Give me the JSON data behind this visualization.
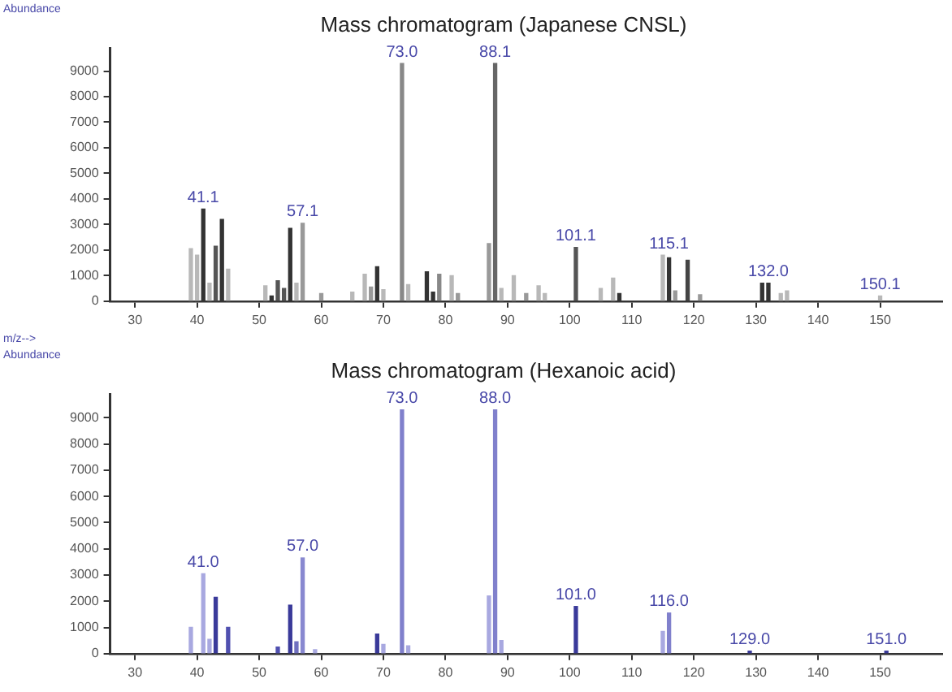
{
  "chart_data": [
    {
      "type": "bar",
      "title": "Mass chromatogram (Japanese CNSL)",
      "xlabel": "m/z-->",
      "ylabel": "Abundance",
      "x": [
        39,
        40,
        41,
        42,
        43,
        44,
        45,
        51,
        52,
        53,
        54,
        55,
        56,
        57,
        60,
        65,
        67,
        68,
        69,
        70,
        73,
        74,
        77,
        78,
        79,
        81,
        82,
        87,
        88,
        89,
        91,
        93,
        95,
        96,
        101,
        105,
        107,
        108,
        115,
        116,
        117,
        119,
        121,
        131,
        132,
        134,
        135,
        150
      ],
      "values": [
        2050,
        1800,
        3600,
        700,
        2150,
        3200,
        1250,
        600,
        200,
        800,
        500,
        2850,
        700,
        3050,
        300,
        350,
        1050,
        550,
        1350,
        450,
        9300,
        650,
        1150,
        350,
        1050,
        1000,
        300,
        2250,
        9300,
        500,
        1000,
        300,
        600,
        300,
        2100,
        500,
        900,
        300,
        1800,
        1700,
        400,
        1600,
        250,
        700,
        700,
        300,
        400,
        200
      ],
      "colors": [
        "#b8b8b8",
        "#b8b8b8",
        "#333333",
        "#b8b8b8",
        "#555555",
        "#333333",
        "#b8b8b8",
        "#b8b8b8",
        "#333333",
        "#555555",
        "#555555",
        "#333333",
        "#b8b8b8",
        "#999999",
        "#999999",
        "#b8b8b8",
        "#b8b8b8",
        "#999999",
        "#333333",
        "#b8b8b8",
        "#888888",
        "#b8b8b8",
        "#333333",
        "#333333",
        "#888888",
        "#b8b8b8",
        "#999999",
        "#999999",
        "#666666",
        "#b8b8b8",
        "#b8b8b8",
        "#999999",
        "#b8b8b8",
        "#b8b8b8",
        "#555555",
        "#b8b8b8",
        "#b8b8b8",
        "#333333",
        "#b8b8b8",
        "#333333",
        "#999999",
        "#444444",
        "#999999",
        "#333333",
        "#333333",
        "#b8b8b8",
        "#b8b8b8",
        "#b8b8b8"
      ],
      "xlim": [
        26,
        160
      ],
      "xticks": [
        30,
        40,
        50,
        60,
        70,
        80,
        90,
        100,
        110,
        120,
        130,
        140,
        150
      ],
      "ylim": [
        0,
        9900
      ],
      "yticks": [
        0,
        1000,
        2000,
        3000,
        4000,
        5000,
        6000,
        7000,
        8000,
        9000
      ],
      "legend": false,
      "grid": false,
      "annotations": [
        {
          "text": "41.1",
          "x": 41,
          "y": 3600
        },
        {
          "text": "57.1",
          "x": 57,
          "y": 3050
        },
        {
          "text": "73.0",
          "x": 73,
          "y": 9300
        },
        {
          "text": "88.1",
          "x": 88,
          "y": 9300
        },
        {
          "text": "101.1",
          "x": 101,
          "y": 2100
        },
        {
          "text": "115.1",
          "x": 116,
          "y": 1800
        },
        {
          "text": "132.0",
          "x": 132,
          "y": 700
        },
        {
          "text": "150.1",
          "x": 150,
          "y": 200
        }
      ]
    },
    {
      "type": "bar",
      "title": "Mass chromatogram (Hexanoic acid)",
      "ylabel": "Abundance",
      "x": [
        39,
        41,
        42,
        43,
        45,
        53,
        55,
        56,
        57,
        59,
        69,
        70,
        73,
        74,
        87,
        88,
        89,
        101,
        115,
        116,
        129,
        151
      ],
      "values": [
        1000,
        3050,
        550,
        2150,
        1000,
        250,
        1850,
        450,
        3650,
        150,
        750,
        350,
        9300,
        300,
        2200,
        9300,
        500,
        1800,
        850,
        1550,
        100,
        100
      ],
      "colors": [
        "#a8a8e0",
        "#a8a8e0",
        "#a8a8e0",
        "#3a3a9a",
        "#5050b0",
        "#5050b0",
        "#3a3a9a",
        "#7070c0",
        "#8888d0",
        "#a8a8e0",
        "#3a3a9a",
        "#a8a8e0",
        "#8080cc",
        "#a8a8e0",
        "#a8a8e0",
        "#8080cc",
        "#a8a8e0",
        "#3a3a9a",
        "#a8a8e0",
        "#8080cc",
        "#3a3a9a",
        "#3a3a9a"
      ],
      "xlim": [
        26,
        160
      ],
      "xticks": [
        30,
        40,
        50,
        60,
        70,
        80,
        90,
        100,
        110,
        120,
        130,
        140,
        150
      ],
      "ylim": [
        0,
        9900
      ],
      "yticks": [
        0,
        1000,
        2000,
        3000,
        4000,
        5000,
        6000,
        7000,
        8000,
        9000
      ],
      "legend": false,
      "grid": false,
      "annotations": [
        {
          "text": "41.0",
          "x": 41,
          "y": 3050
        },
        {
          "text": "57.0",
          "x": 57,
          "y": 3650
        },
        {
          "text": "73.0",
          "x": 73,
          "y": 9300
        },
        {
          "text": "88.0",
          "x": 88,
          "y": 9300
        },
        {
          "text": "101.0",
          "x": 101,
          "y": 1800
        },
        {
          "text": "116.0",
          "x": 116,
          "y": 1550
        },
        {
          "text": "129.0",
          "x": 129,
          "y": 100
        },
        {
          "text": "151.0",
          "x": 151,
          "y": 100
        }
      ]
    }
  ]
}
